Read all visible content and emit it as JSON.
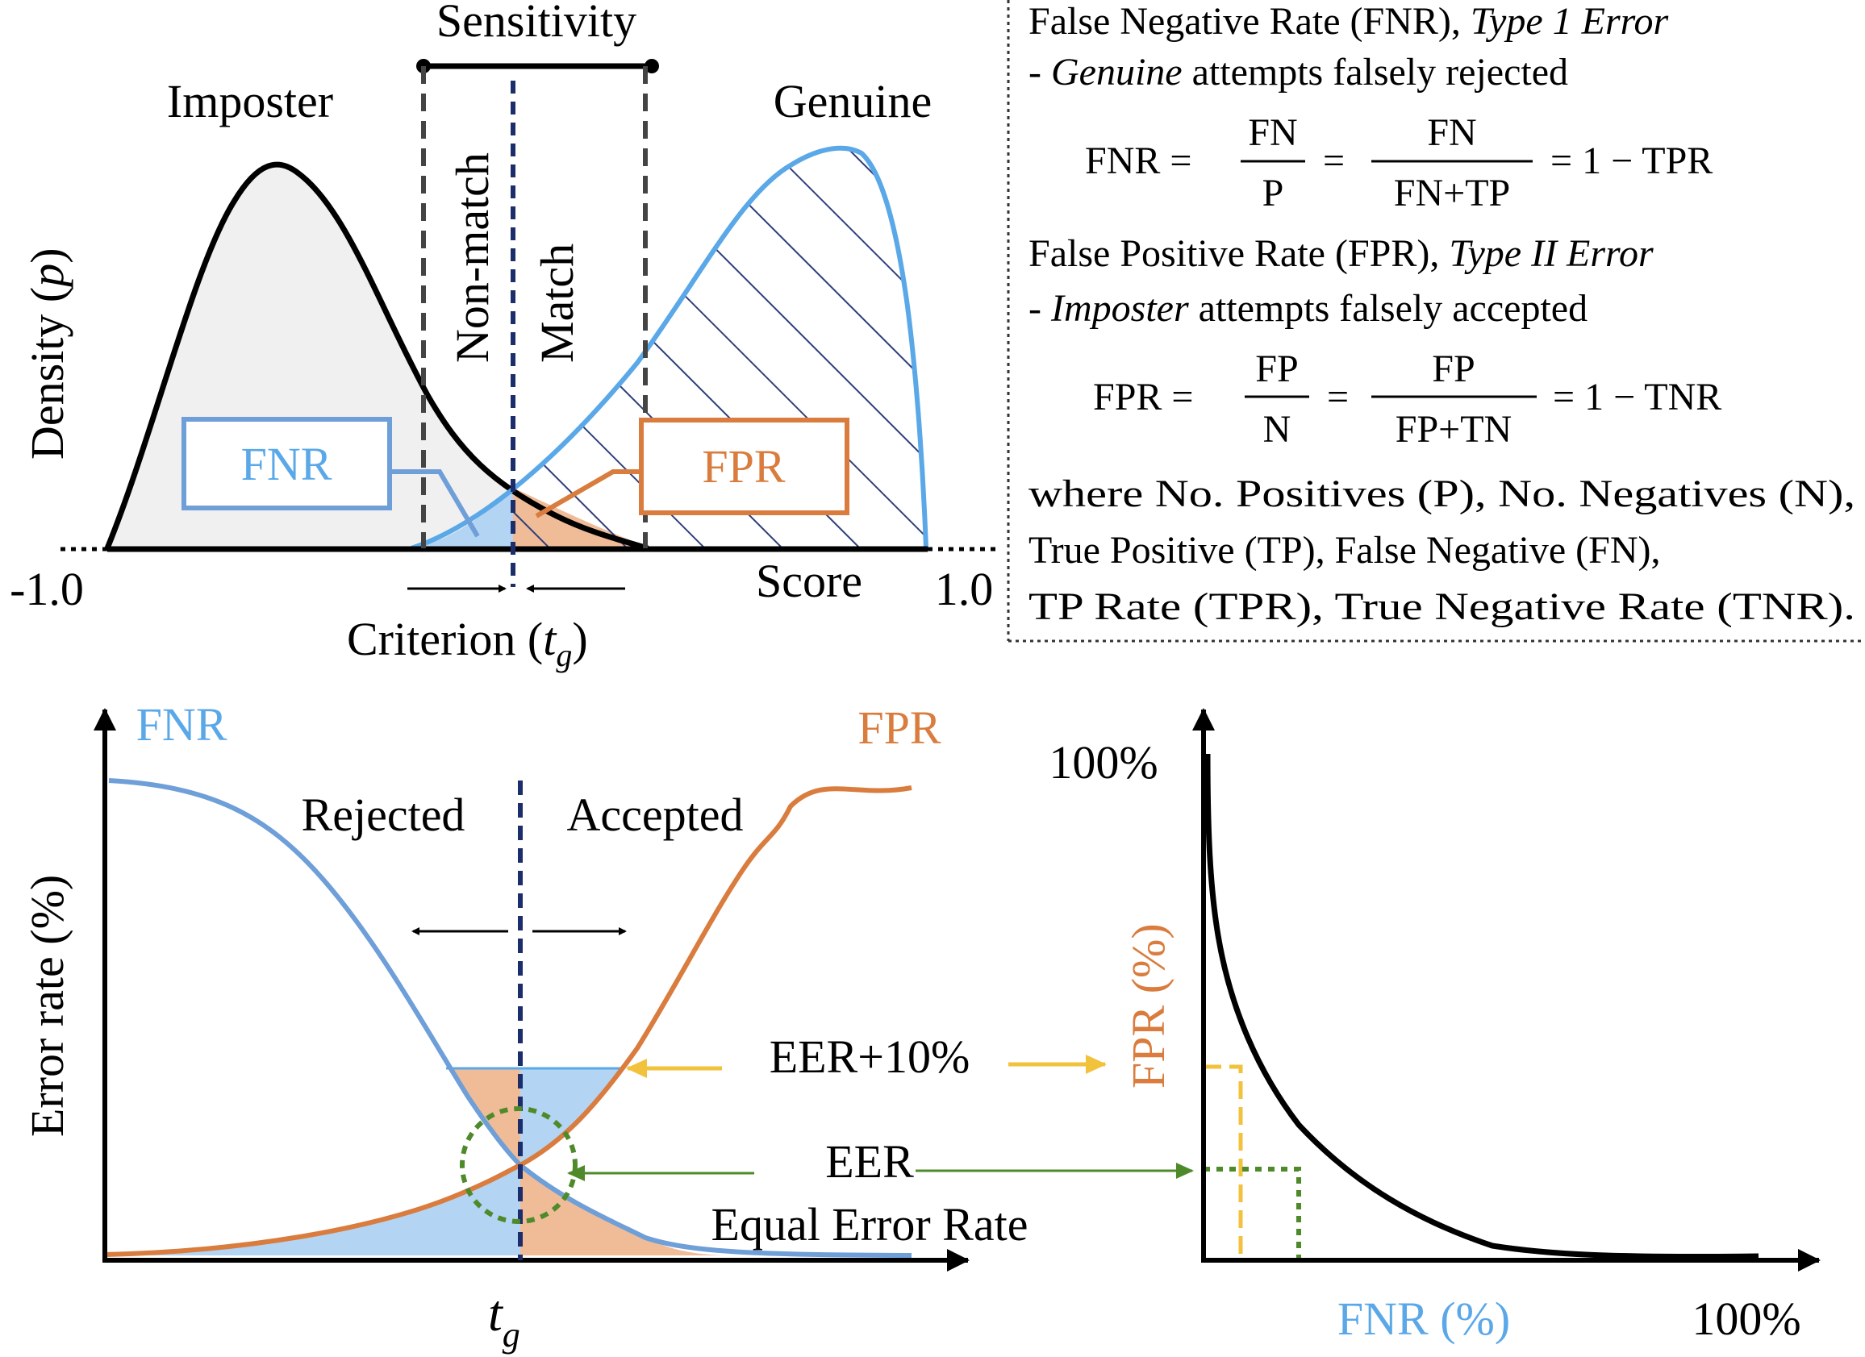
{
  "colors": {
    "black": "#000000",
    "fnr_blue": "#5aa8e8",
    "fnr_blue_dark": "#6f9fd8",
    "fpr_orange": "#d97c3d",
    "fill_grey": "#f0f0f0",
    "fill_blue": "#b3d4f2",
    "fill_orange": "#f0bc98",
    "hatch_navy": "#2f3f7a",
    "criterion_navy": "#1c2d6b",
    "eer_green": "#4f8a2a",
    "eer10_yellow": "#f2c23c"
  },
  "top_panel": {
    "sensitivity_label": "Sensitivity",
    "imposter_label": "Imposter",
    "genuine_label": "Genuine",
    "ylabel": "Density (",
    "ylabel_var": "p",
    "ylabel_close": ")",
    "nonmatch_label": "Non-match",
    "match_label": "Match",
    "fnr_box_label": "FNR",
    "fpr_box_label": "FPR",
    "score_label": "Score",
    "xmin_label": "-1.0",
    "xmax_label": "1.0",
    "criterion_label": "Criterion (",
    "criterion_var": "t",
    "criterion_sub": "g",
    "criterion_close": ")"
  },
  "definitions": {
    "fnr_title": "False Negative Rate (FNR), ",
    "fnr_title_em": "Type 1 Error",
    "fnr_dash": "- ",
    "fnr_desc_em": "Genuine",
    "fnr_desc": " attempts falsely rejected",
    "fnr_eq_lhs": "FNR =",
    "fnr_frac1_num": "FN",
    "fnr_frac1_den": "P",
    "fnr_eq2": "=",
    "fnr_frac2_num": "FN",
    "fnr_frac2_den": "FN+TP",
    "fnr_eq_rhs": "= 1 − TPR",
    "fpr_title": "False Positive Rate (FPR), ",
    "fpr_title_em": "Type II Error",
    "fpr_dash": "- ",
    "fpr_desc_em": "Imposter",
    "fpr_desc": " attempts falsely accepted",
    "fpr_eq_lhs": "FPR =",
    "fpr_frac1_num": "FP",
    "fpr_frac1_den": "N",
    "fpr_eq2": "=",
    "fpr_frac2_num": "FP",
    "fpr_frac2_den": "FP+TN",
    "fpr_eq_rhs": "= 1 − TNR",
    "where_line1": "where No. Positives (P), No. Negatives (N),",
    "where_line2": "True Positive (TP), False Negative (FN),",
    "where_line3": "TP Rate (TPR), True Negative Rate (TNR)."
  },
  "bottom_left": {
    "fnr_label": "FNR",
    "fpr_label": "FPR",
    "ylabel": "Error rate (%)",
    "rejected_label": "Rejected",
    "accepted_label": "Accepted",
    "eer10_label": "EER+10%",
    "eer_label": "EER",
    "eer_full_label": "Equal Error Rate",
    "tg_var": "t",
    "tg_sub": "g"
  },
  "bottom_right": {
    "y100_label": "100%",
    "ylabel": "FPR (%)",
    "xlabel": "FNR (%)",
    "x100_label": "100%"
  }
}
